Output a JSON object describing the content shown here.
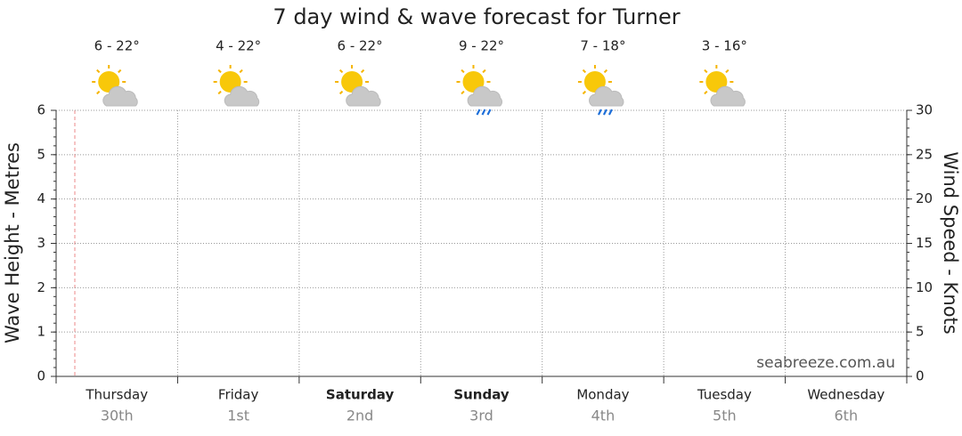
{
  "chart_data": {
    "type": "line",
    "title": "7 day wind & wave forecast for Turner",
    "y_label": "Wave Height - Metres",
    "y2_label": "Wind Speed - Knots",
    "watermark": "seabreeze.com.au",
    "categories": [
      "Thursday",
      "Friday",
      "Saturday",
      "Sunday",
      "Monday",
      "Tuesday",
      "Wednesday"
    ],
    "dates": [
      "30th",
      "1st",
      "2nd",
      "3rd",
      "4th",
      "5th",
      "6th"
    ],
    "emphasis": [
      false,
      false,
      true,
      true,
      false,
      false,
      false
    ],
    "temperatures": [
      "6 - 22°",
      "4 - 22°",
      "6 - 22°",
      "9 - 22°",
      "7 - 18°",
      "3 - 16°"
    ],
    "icons": [
      "partly-cloudy",
      "partly-cloudy",
      "partly-cloudy",
      "showers",
      "showers",
      "partly-cloudy"
    ],
    "series": [],
    "ylim": [
      0,
      6
    ],
    "yticks": [
      0,
      1,
      2,
      3,
      4,
      5,
      6
    ],
    "y2lim": [
      0,
      30
    ],
    "y2ticks": [
      0,
      5,
      10,
      15,
      20,
      25,
      30
    ],
    "grid": true
  }
}
